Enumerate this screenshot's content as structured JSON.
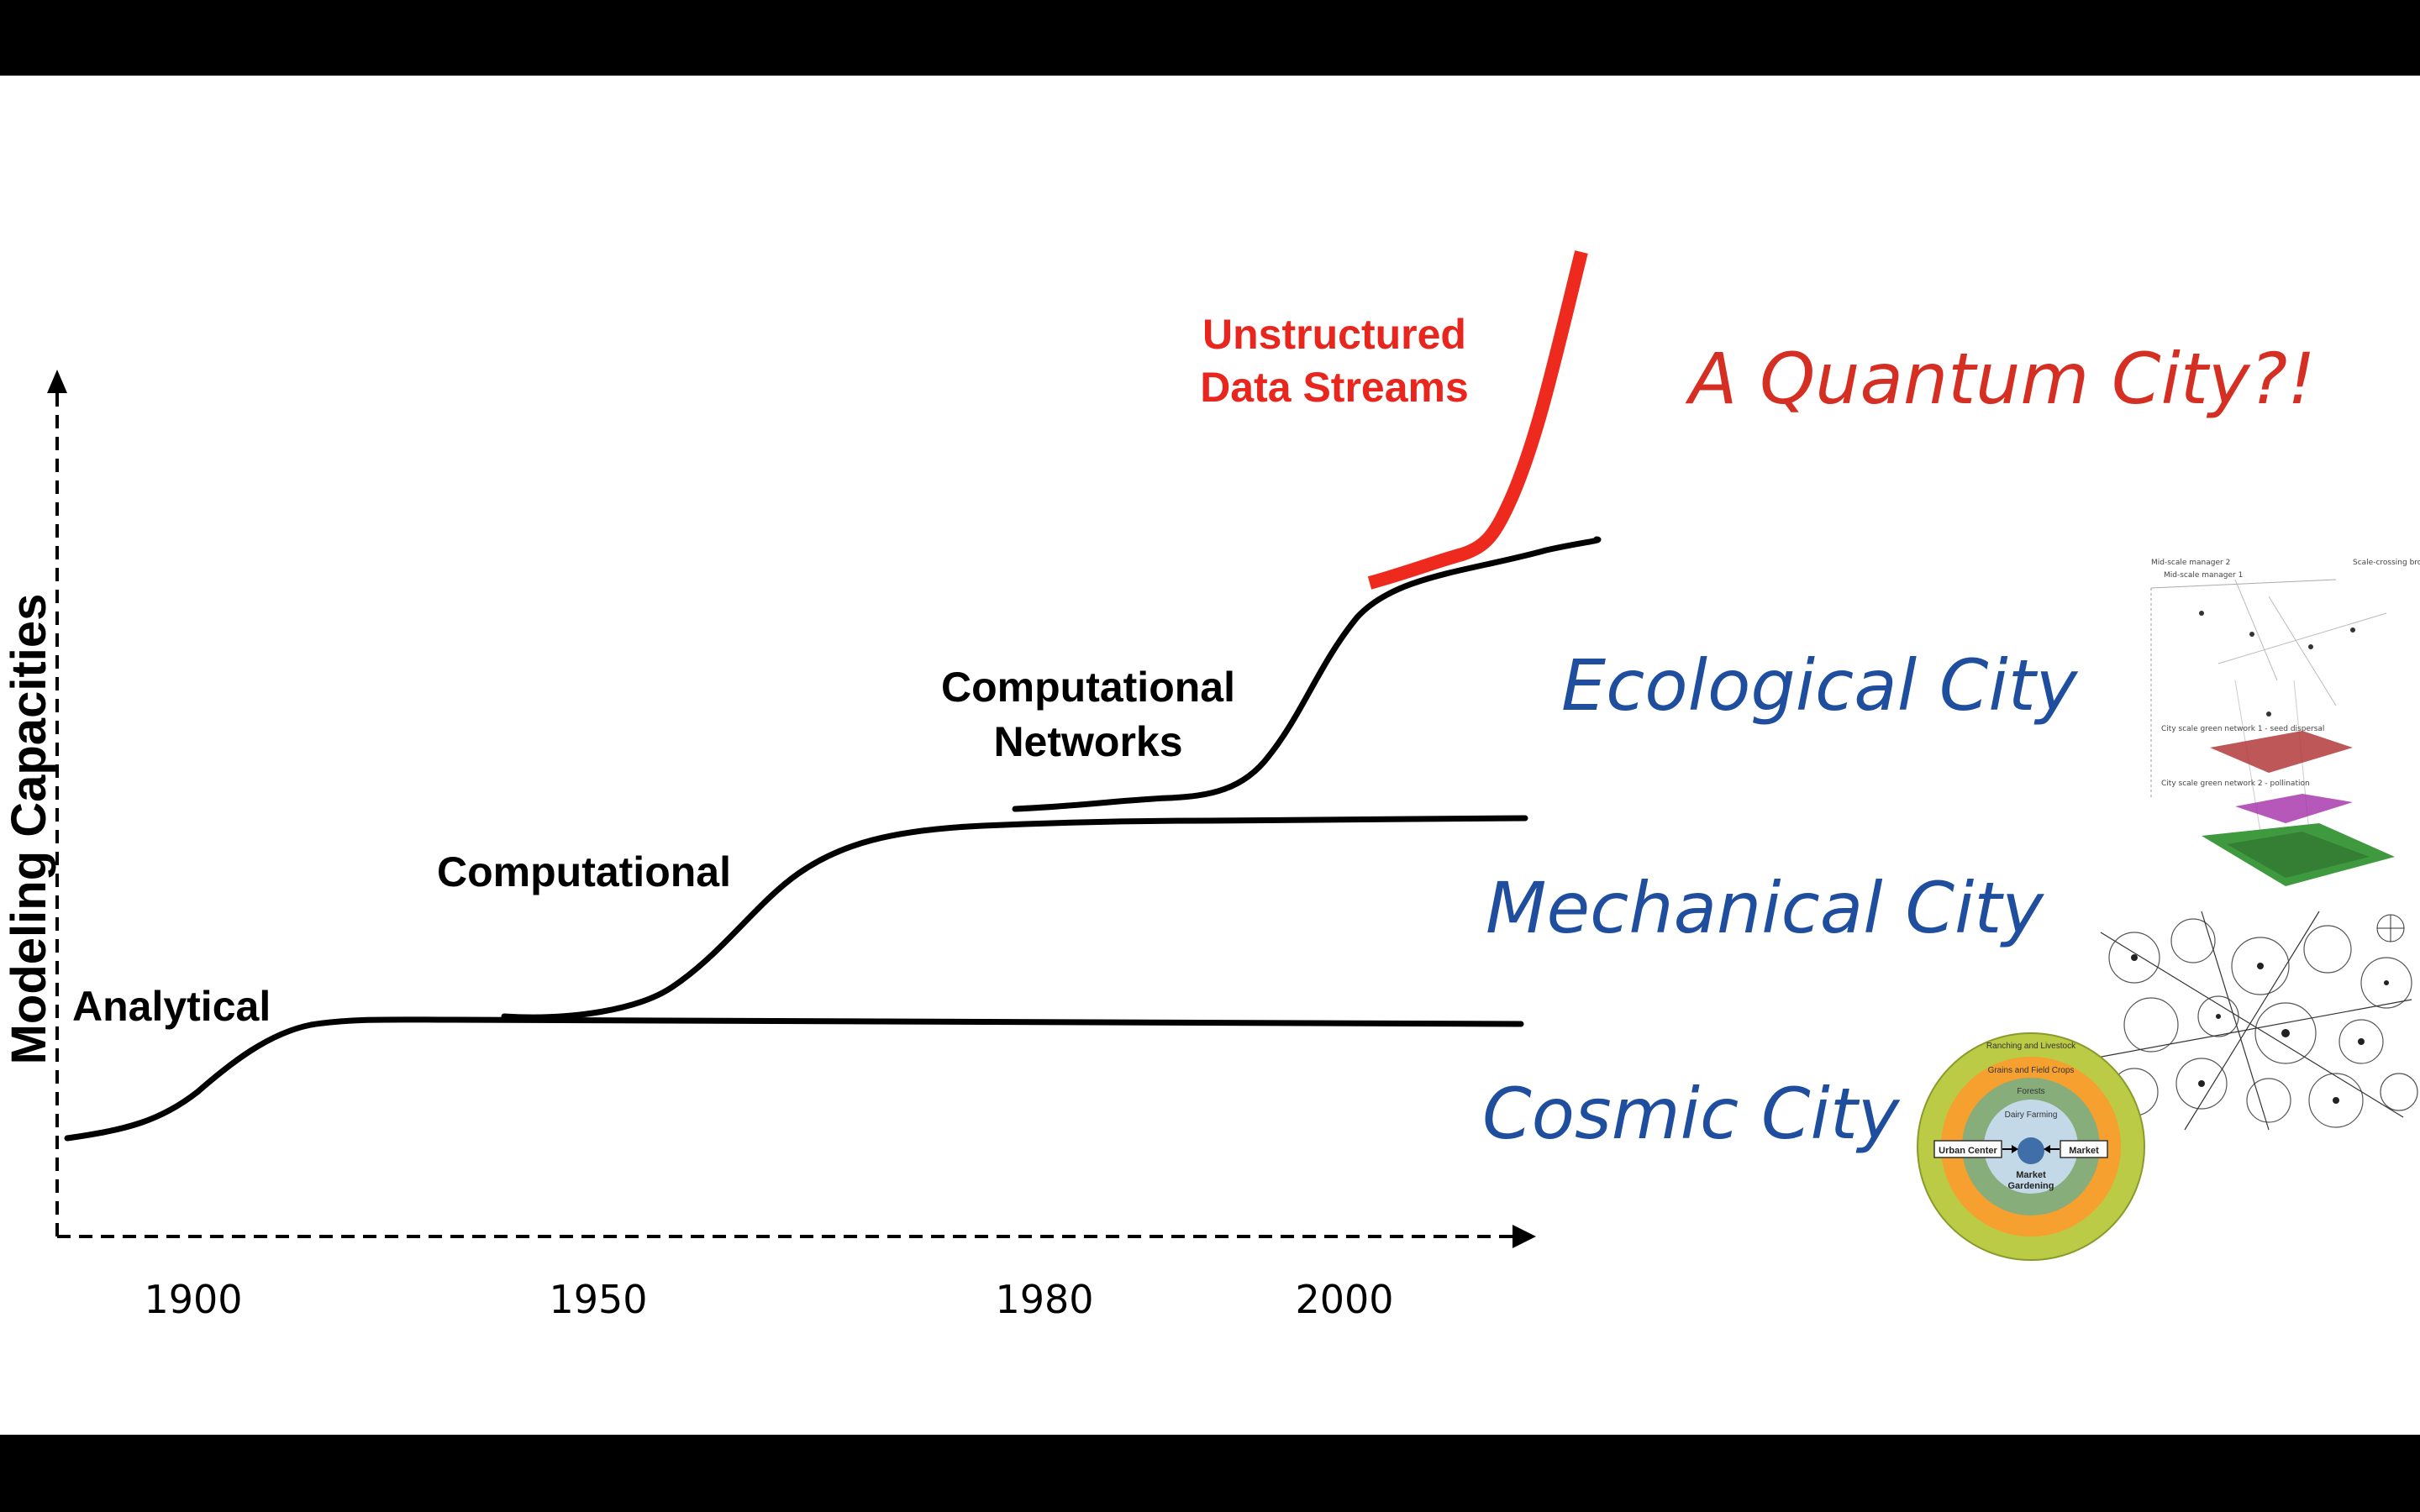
{
  "axes": {
    "y_title": "Modeling Capacities",
    "x_ticks": [
      "1900",
      "1950",
      "1980",
      "2000"
    ]
  },
  "stages": {
    "analytical": "Analytical",
    "computational": "Computational",
    "networks_line1": "Computational",
    "networks_line2": "Networks",
    "streams_line1": "Unstructured",
    "streams_line2": "Data Streams"
  },
  "cities": {
    "quantum": "A Quantum City?!",
    "ecological": "Ecological City",
    "mechanical": "Mechanical City",
    "cosmic": "Cosmic City"
  },
  "cosmic_figure": {
    "zones": [
      "Ranching and Livestock",
      "Grains and Field Crops",
      "Forests",
      "Dairy Farming"
    ],
    "center_line1": "Market",
    "center_line2": "Gardening",
    "left_box": "Urban Center",
    "right_box": "Market"
  },
  "ecological_figure": {
    "labels": [
      "Mid-scale manager 2",
      "Mid-scale manager 1",
      "Scale-crossing broker",
      "City scale green network 1 - seed dispersal",
      "City scale green network 2 - pollination"
    ]
  },
  "colors": {
    "curve": "#000000",
    "stream": "#ee2a1e",
    "city_blue": "#1f4e9e",
    "quantum_red": "#d42f22"
  }
}
